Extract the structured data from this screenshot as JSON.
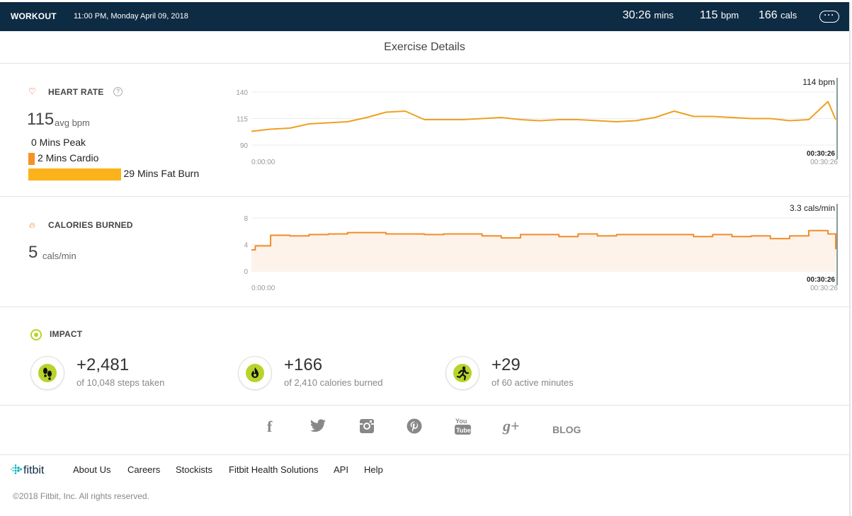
{
  "topbar": {
    "title": "WORKOUT",
    "datetime": "11:00 PM, Monday April 09, 2018",
    "duration_value": "30:26",
    "duration_unit": "mins",
    "bpm_value": "115",
    "bpm_unit": "bpm",
    "cals_value": "166",
    "cals_unit": "cals",
    "more_label": "···"
  },
  "page_title": "Exercise Details",
  "heart_rate": {
    "heading": "HEART RATE",
    "avg_value": "115",
    "avg_unit": "avg bpm",
    "zones": [
      {
        "label": "0 Mins Peak",
        "minutes": 0,
        "color": "#e8502a"
      },
      {
        "label": "2 Mins Cardio",
        "minutes": 2,
        "color": "#f39323"
      },
      {
        "label": "29 Mins Fat Burn",
        "minutes": 29,
        "color": "#fbb21b"
      }
    ]
  },
  "calories": {
    "heading": "CALORIES BURNED",
    "value": "5",
    "unit": "cals/min"
  },
  "chart_data": [
    {
      "type": "line",
      "name": "heart-rate",
      "ylim": [
        90,
        140
      ],
      "yticks": [
        "140",
        "115",
        "90"
      ],
      "x_start_label": "0:00:00",
      "x_end_label": "00:30:26",
      "x_end_label_secondary": "00:30:26",
      "current_label": "114 bpm",
      "line_color": "#f0a020",
      "x": [
        0,
        1,
        2,
        3,
        4,
        5,
        6,
        7,
        8,
        9,
        10,
        11,
        12,
        13,
        14,
        15,
        16,
        17,
        18,
        19,
        20,
        21,
        22,
        23,
        24,
        25,
        26,
        27,
        28,
        29,
        30,
        30.4
      ],
      "y": [
        103,
        105,
        106,
        110,
        111,
        112,
        116,
        121,
        122,
        114,
        114,
        114,
        115,
        116,
        114,
        113,
        114,
        114,
        113,
        112,
        113,
        116,
        122,
        117,
        117,
        116,
        115,
        115,
        113,
        114,
        131,
        114
      ]
    },
    {
      "type": "area",
      "name": "calories",
      "ylim": [
        0,
        8
      ],
      "yticks": [
        "8",
        "4",
        "0"
      ],
      "x_start_label": "0:00:00",
      "x_end_label": "00:30:26",
      "x_end_label_secondary": "00:30:26",
      "current_label": "3.3 cals/min",
      "line_color": "#f08c2a",
      "fill_color": "#fef3ea",
      "x": [
        0,
        0.2,
        1,
        2,
        3,
        4,
        5,
        6,
        7,
        8,
        9,
        10,
        11,
        12,
        13,
        14,
        15,
        16,
        17,
        18,
        19,
        20,
        21,
        22,
        23,
        24,
        25,
        26,
        27,
        28,
        29,
        30,
        30.4
      ],
      "y": [
        3.2,
        3.8,
        5.4,
        5.3,
        5.5,
        5.6,
        5.8,
        5.8,
        5.6,
        5.6,
        5.5,
        5.6,
        5.6,
        5.3,
        5.0,
        5.5,
        5.5,
        5.2,
        5.6,
        5.3,
        5.5,
        5.5,
        5.5,
        5.5,
        5.2,
        5.5,
        5.2,
        5.3,
        4.9,
        5.3,
        6.1,
        5.6,
        3.3
      ]
    }
  ],
  "impact": {
    "heading": "IMPACT",
    "items": [
      {
        "icon": "footsteps-icon",
        "value": "+2,481",
        "sub": "of 10,048 steps taken"
      },
      {
        "icon": "flame-icon",
        "value": "+166",
        "sub": "of 2,410 calories burned"
      },
      {
        "icon": "runner-icon",
        "value": "+29",
        "sub": "of 60 active minutes"
      }
    ],
    "accent_color": "#b6d42a"
  },
  "social": {
    "facebook": "f",
    "blog": "BLOG"
  },
  "footer": {
    "logo": "fitbit",
    "links": [
      "About Us",
      "Careers",
      "Stockists",
      "Fitbit Health Solutions",
      "API",
      "Help"
    ],
    "copyright": "©2018 Fitbit, Inc. All rights reserved."
  }
}
